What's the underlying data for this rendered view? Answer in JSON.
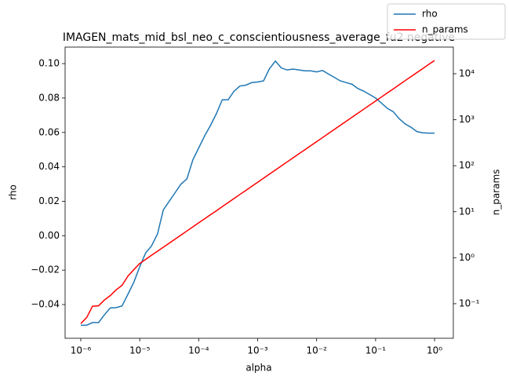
{
  "chart_data": {
    "type": "line",
    "title": "IMAGEN_mats_mid_bsl_neo_c_conscientiousness_average_fu2 negative",
    "xlabel": "alpha",
    "ylabel": "rho",
    "y2label": "n_params",
    "xscale": "log",
    "y2scale": "log",
    "grid": false,
    "legend": "upper right",
    "x": [
      1e-06,
      1.26e-06,
      1.58e-06,
      2e-06,
      2.51e-06,
      3.16e-06,
      3.98e-06,
      5.01e-06,
      6.31e-06,
      7.94e-06,
      1e-05,
      1.26e-05,
      1.58e-05,
      2e-05,
      2.51e-05,
      3.16e-05,
      3.98e-05,
      5.01e-05,
      6.31e-05,
      7.94e-05,
      0.0001,
      0.000126,
      0.000158,
      0.0002,
      0.000251,
      0.000316,
      0.000398,
      0.000501,
      0.000631,
      0.000794,
      0.001,
      0.00126,
      0.00158,
      0.002,
      0.00251,
      0.00316,
      0.00398,
      0.00501,
      0.00631,
      0.00794,
      0.01,
      0.0126,
      0.0158,
      0.02,
      0.0251,
      0.0316,
      0.0398,
      0.0501,
      0.0631,
      0.0794,
      0.1,
      0.126,
      0.158,
      0.2,
      0.251,
      0.316,
      0.398,
      0.501,
      0.631,
      0.794,
      1
    ],
    "series": [
      {
        "name": "rho",
        "color": "#1f77b4",
        "axis": "y",
        "values": [
          -0.052,
          -0.052,
          -0.0505,
          -0.0505,
          -0.046,
          -0.042,
          -0.0418,
          -0.0408,
          -0.034,
          -0.027,
          -0.018,
          -0.01,
          -0.006,
          0.001,
          0.015,
          0.02,
          0.025,
          0.03,
          0.033,
          0.044,
          0.051,
          0.058,
          0.064,
          0.071,
          0.079,
          0.079,
          0.084,
          0.087,
          0.0875,
          0.089,
          0.0893,
          0.09,
          0.097,
          0.1015,
          0.0975,
          0.0963,
          0.0968,
          0.0963,
          0.0958,
          0.0958,
          0.0952,
          0.096,
          0.094,
          0.092,
          0.09,
          0.089,
          0.088,
          0.0855,
          0.084,
          0.082,
          0.08,
          0.077,
          0.074,
          0.072,
          0.068,
          0.065,
          0.063,
          0.0605,
          0.0598,
          0.0596,
          0.0596
        ]
      },
      {
        "name": "n_params",
        "color": "#ff0000",
        "axis": "y2",
        "values": [
          0.037,
          0.05,
          0.088,
          0.09,
          0.12,
          0.15,
          0.2,
          0.25,
          0.4,
          0.55,
          0.75,
          0.92,
          1.13,
          1.38,
          1.69,
          2.07,
          2.54,
          3.11,
          3.81,
          4.67,
          5.73,
          7.02,
          8.6,
          10.5,
          12.9,
          15.8,
          19.4,
          23.8,
          29.1,
          35.7,
          43.7,
          53.6,
          65.7,
          80.5,
          98.6,
          121,
          148,
          182,
          222,
          273,
          334,
          409,
          502,
          615,
          753,
          924,
          1132,
          1387,
          1700,
          2084,
          2553,
          3126,
          3837,
          4699,
          5754,
          7063,
          8650,
          10600,
          12970,
          15920,
          19500
        ]
      }
    ],
    "xlim": [
      5.42e-07,
      2.08
    ],
    "xticks": [
      {
        "value": 1e-06,
        "label": "10⁻⁶"
      },
      {
        "value": 1e-05,
        "label": "10⁻⁵"
      },
      {
        "value": 0.0001,
        "label": "10⁻⁴"
      },
      {
        "value": 0.001,
        "label": "10⁻³"
      },
      {
        "value": 0.01,
        "label": "10⁻²"
      },
      {
        "value": 0.1,
        "label": "10⁻¹"
      },
      {
        "value": 1,
        "label": "10⁰"
      }
    ],
    "ylim": [
      -0.0596,
      0.1096
    ],
    "yticks": [
      {
        "value": -0.04,
        "label": "−0.04"
      },
      {
        "value": -0.02,
        "label": "−0.02"
      },
      {
        "value": 0,
        "label": "0.00"
      },
      0.02,
      0.04,
      0.06,
      0.08,
      {
        "value": 0.1,
        "label": "0.10"
      }
    ],
    "y2lim": [
      0.0177,
      38000
    ],
    "y2ticks": [
      {
        "value": 0.1,
        "label": "10⁻¹"
      },
      {
        "value": 1,
        "label": "10⁰"
      },
      {
        "value": 10,
        "label": "10¹"
      },
      {
        "value": 100,
        "label": "10²"
      },
      {
        "value": 1000,
        "label": "10³"
      },
      {
        "value": 10000,
        "label": "10⁴"
      }
    ]
  }
}
